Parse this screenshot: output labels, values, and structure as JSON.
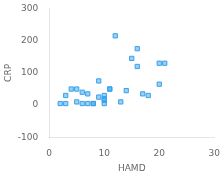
{
  "chart_data": {
    "type": "scatter",
    "x": [
      2,
      3,
      3,
      4,
      5,
      5,
      6,
      6,
      7,
      7,
      8,
      8,
      9,
      9,
      10,
      10,
      10,
      10,
      11,
      11,
      12,
      13,
      14,
      15,
      16,
      16,
      17,
      18,
      20,
      20,
      21
    ],
    "values": [
      5,
      5,
      30,
      50,
      10,
      50,
      5,
      40,
      35,
      5,
      5,
      5,
      75,
      25,
      30,
      20,
      15,
      5,
      50,
      50,
      215,
      10,
      45,
      145,
      175,
      120,
      35,
      30,
      65,
      130,
      130
    ],
    "xlim": [
      0,
      30
    ],
    "ylim": [
      -100,
      300
    ],
    "xticks": [
      0,
      10,
      20,
      30
    ],
    "yticks": [
      -100,
      0,
      100,
      200,
      300
    ],
    "xlabel": "HAMD",
    "ylabel": "CRP",
    "marker": "square",
    "grid": false
  }
}
